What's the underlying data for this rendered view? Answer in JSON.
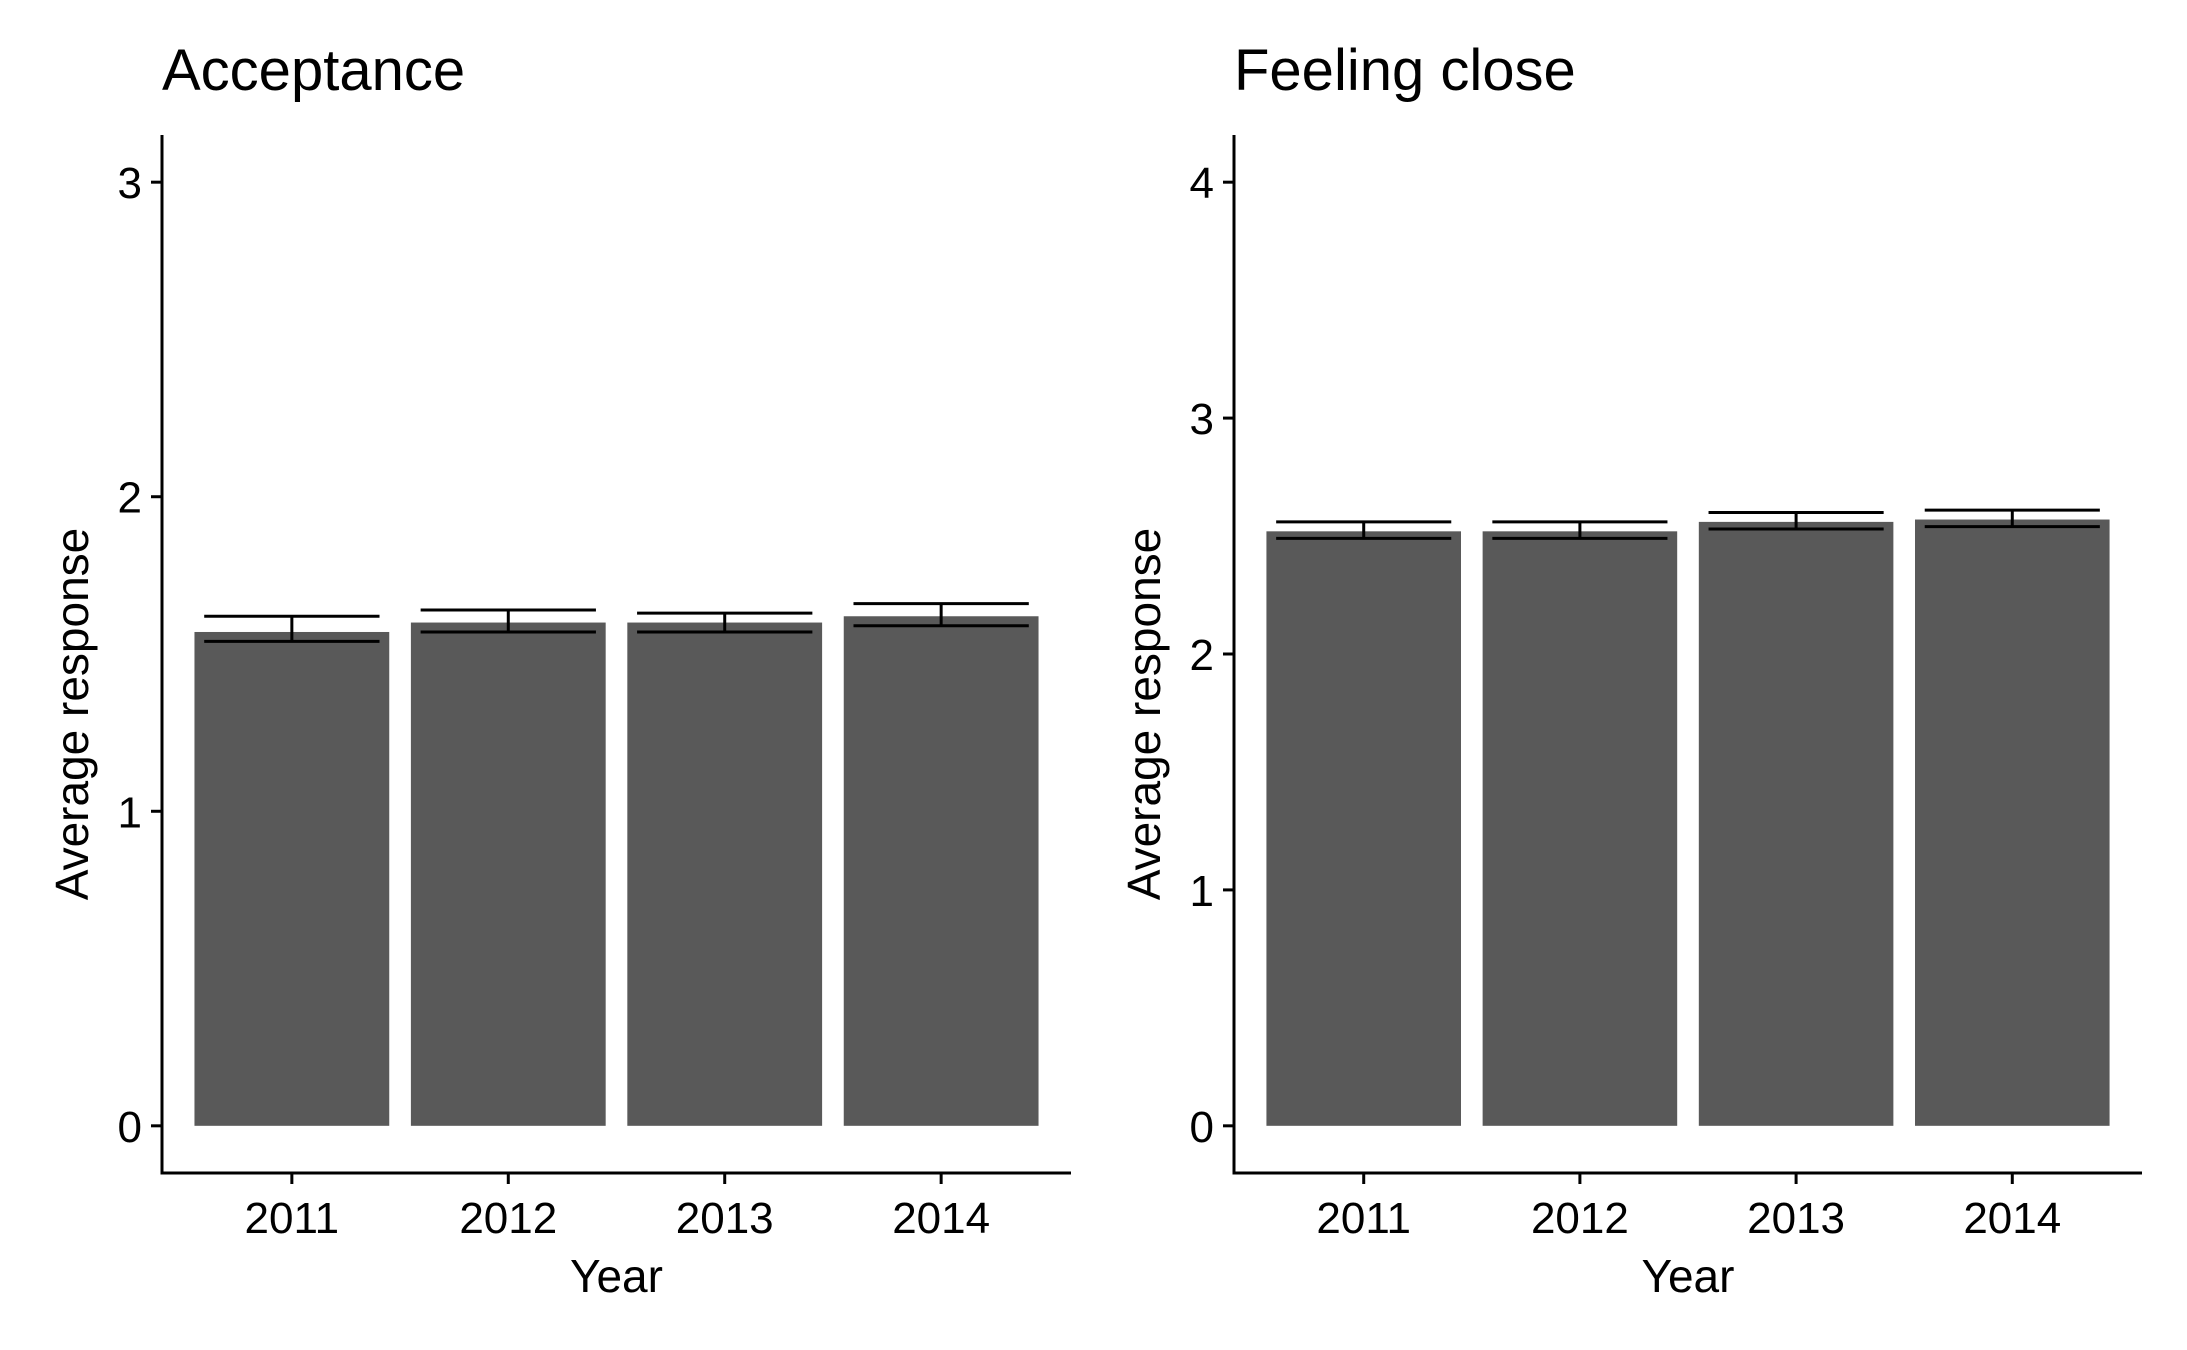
{
  "colors": {
    "bar_fill": "#595959",
    "axis": "#000000",
    "errorbar": "#000000",
    "background": "#ffffff"
  },
  "chart_data": [
    {
      "type": "bar",
      "title": "Acceptance",
      "xlabel": "Year",
      "ylabel": "Average response",
      "categories": [
        "2011",
        "2012",
        "2013",
        "2014"
      ],
      "values": [
        1.57,
        1.6,
        1.6,
        1.62
      ],
      "error_low": [
        1.54,
        1.57,
        1.57,
        1.59
      ],
      "error_high": [
        1.62,
        1.64,
        1.63,
        1.66
      ],
      "ylim": [
        -0.15,
        3.15
      ],
      "yticks": [
        0,
        1,
        2,
        3
      ],
      "ytick_labels": [
        "0",
        "1",
        "2",
        "3"
      ],
      "grid": false,
      "legend": "none"
    },
    {
      "type": "bar",
      "title": "Feeling close",
      "xlabel": "Year",
      "ylabel": "Average response",
      "categories": [
        "2011",
        "2012",
        "2013",
        "2014"
      ],
      "values": [
        2.52,
        2.52,
        2.56,
        2.57
      ],
      "error_low": [
        2.49,
        2.49,
        2.53,
        2.54
      ],
      "error_high": [
        2.56,
        2.56,
        2.6,
        2.61
      ],
      "ylim": [
        -0.2,
        4.2
      ],
      "yticks": [
        0,
        1,
        2,
        3,
        4
      ],
      "ytick_labels": [
        "0",
        "1",
        "2",
        "3",
        "4"
      ],
      "grid": false,
      "legend": "none"
    }
  ]
}
